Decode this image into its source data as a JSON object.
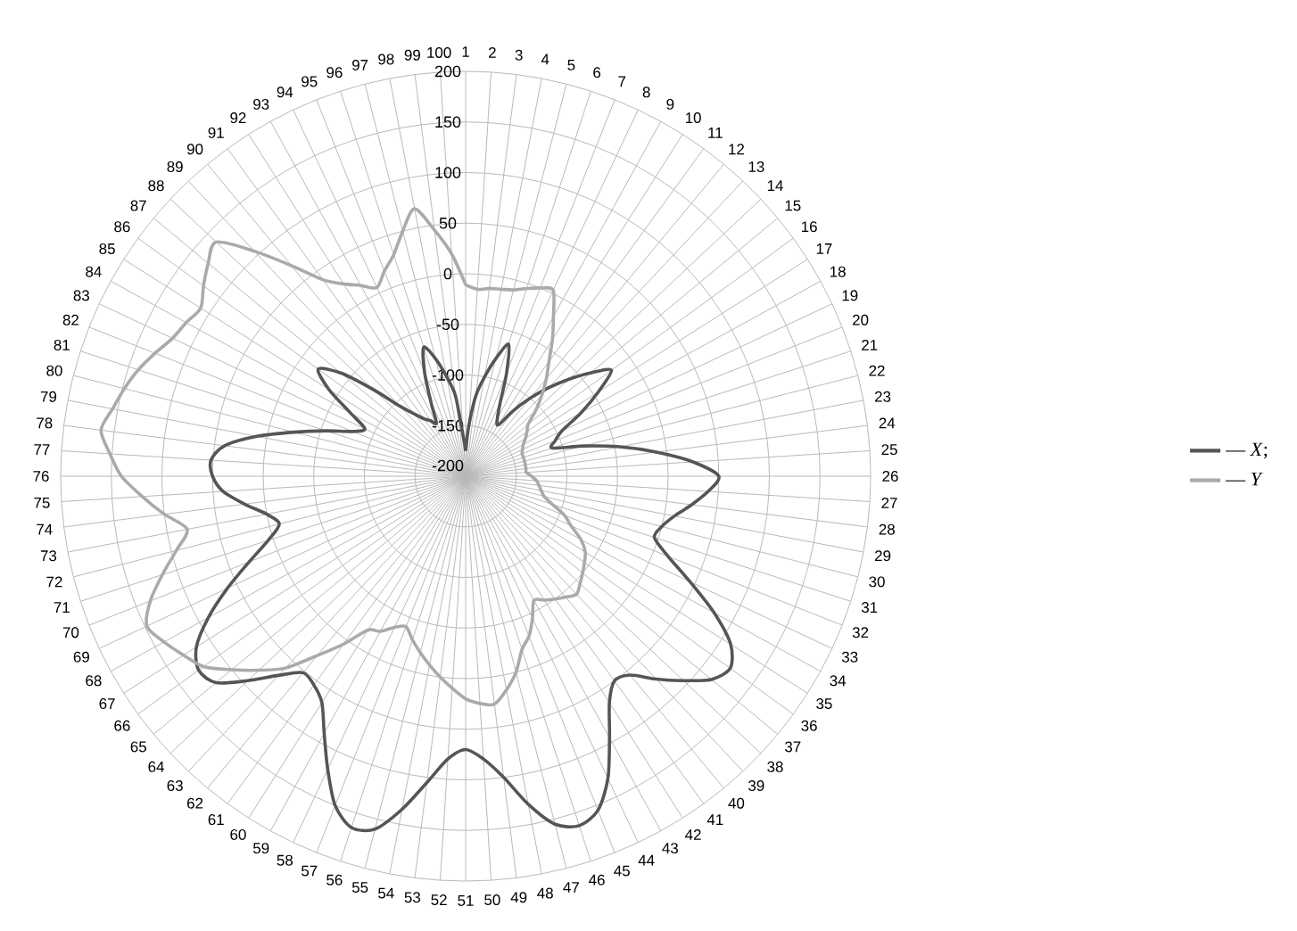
{
  "chart_data": {
    "type": "radar",
    "categories": [
      "1",
      "2",
      "3",
      "4",
      "5",
      "6",
      "7",
      "8",
      "9",
      "10",
      "11",
      "12",
      "13",
      "14",
      "15",
      "16",
      "17",
      "18",
      "19",
      "20",
      "21",
      "22",
      "23",
      "24",
      "25",
      "26",
      "27",
      "28",
      "29",
      "30",
      "31",
      "32",
      "33",
      "34",
      "35",
      "36",
      "37",
      "38",
      "39",
      "40",
      "41",
      "42",
      "43",
      "44",
      "45",
      "46",
      "47",
      "48",
      "49",
      "50",
      "51",
      "52",
      "53",
      "54",
      "55",
      "56",
      "57",
      "58",
      "59",
      "60",
      "61",
      "62",
      "63",
      "64",
      "65",
      "66",
      "67",
      "68",
      "69",
      "70",
      "71",
      "72",
      "73",
      "74",
      "75",
      "76",
      "77",
      "78",
      "79",
      "80",
      "81",
      "82",
      "83",
      "84",
      "85",
      "86",
      "87",
      "88",
      "89",
      "90",
      "91",
      "92",
      "93",
      "94",
      "95",
      "96",
      "97",
      "98",
      "99",
      "100"
    ],
    "series": [
      {
        "name": "— *X*;",
        "color": "#555555",
        "values": [
          -175,
          -150,
          -120,
          -100,
          -80,
          -63,
          -90,
          -120,
          -135,
          -140,
          -120,
          -100,
          -80,
          -60,
          -40,
          -22,
          -45,
          -70,
          -95,
          -105,
          -110,
          -80,
          -45,
          -10,
          25,
          50,
          40,
          25,
          10,
          0,
          -4,
          15,
          45,
          80,
          110,
          123,
          115,
          95,
          75,
          55,
          50,
          65,
          95,
          130,
          155,
          163,
          155,
          130,
          100,
          80,
          70,
          80,
          105,
          135,
          160,
          165,
          150,
          120,
          90,
          65,
          55,
          52,
          70,
          95,
          120,
          126,
          115,
          90,
          60,
          30,
          5,
          -10,
          0,
          20,
          40,
          50,
          52,
          40,
          10,
          -25,
          -55,
          -80,
          -90,
          -70,
          -40,
          -20,
          -40,
          -75,
          -105,
          -120,
          -130,
          -135,
          -140,
          -120,
          -90,
          -66,
          -80,
          -100,
          -120,
          -160
        ]
      },
      {
        "name": "— *Y*",
        "color": "#aaaaaa",
        "values": [
          -11,
          -15,
          -13,
          -12,
          -10,
          -5,
          0,
          3,
          -20,
          -40,
          -60,
          -75,
          -90,
          -105,
          -120,
          -125,
          -130,
          -135,
          -138,
          -140,
          -140,
          -140,
          -140,
          -140,
          -140,
          -135,
          -130,
          -127,
          -124,
          -120,
          -110,
          -95,
          -85,
          -70,
          -60,
          -55,
          -50,
          -45,
          -40,
          -45,
          -50,
          -55,
          -60,
          -45,
          -30,
          -20,
          0,
          15,
          27,
          25,
          20,
          10,
          0,
          -10,
          -20,
          -30,
          -40,
          -35,
          -25,
          -20,
          5,
          30,
          60,
          80,
          100,
          120,
          130,
          140,
          148,
          135,
          115,
          95,
          80,
          100,
          120,
          140,
          152,
          163,
          155,
          148,
          140,
          130,
          120,
          115,
          110,
          120,
          130,
          138,
          105,
          70,
          40,
          25,
          15,
          6,
          18,
          30,
          50,
          69,
          45,
          20
        ]
      }
    ],
    "ylim": [
      -200,
      200
    ],
    "yticks": [
      -200,
      -150,
      -100,
      -50,
      0,
      50,
      100,
      150,
      200
    ],
    "grid": true,
    "legend": "right"
  }
}
